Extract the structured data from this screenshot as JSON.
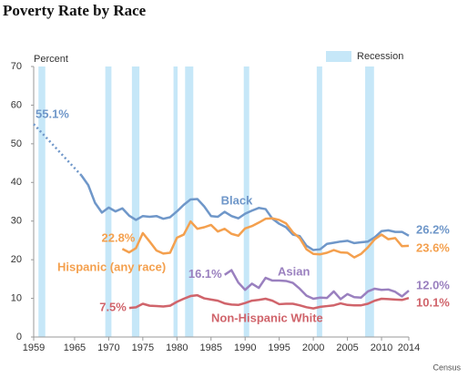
{
  "chart_data": {
    "type": "line",
    "title": "Poverty Rate by Race",
    "y_label": "Percent",
    "source": "Census",
    "recession_label": "Recession",
    "recession_color": "#c6e7f8",
    "recessions": [
      [
        1959.7,
        1960.7
      ],
      [
        1969.5,
        1970.4
      ],
      [
        1973.4,
        1974.5
      ],
      [
        1979.5,
        1980.1
      ],
      [
        1981.2,
        1982.4
      ],
      [
        1989.8,
        1990.6
      ],
      [
        2000.5,
        2001.3
      ],
      [
        2007.6,
        2008.9
      ]
    ],
    "xlim": [
      1959,
      2014
    ],
    "xticks": [
      1959,
      1965,
      1970,
      1975,
      1980,
      1985,
      1990,
      1995,
      2000,
      2005,
      2010,
      2014
    ],
    "ylim": [
      0,
      70
    ],
    "yticks": [
      0,
      10,
      20,
      30,
      40,
      50,
      60,
      70
    ],
    "grid": false,
    "series": [
      {
        "name": "Black",
        "color": "#6f97c9",
        "dotted_to": 1966,
        "x": [
          1959,
          1966,
          1967,
          1968,
          1969,
          1970,
          1971,
          1972,
          1973,
          1974,
          1975,
          1976,
          1977,
          1978,
          1979,
          1980,
          1981,
          1982,
          1983,
          1984,
          1985,
          1986,
          1987,
          1988,
          1989,
          1990,
          1991,
          1992,
          1993,
          1994,
          1995,
          1996,
          1997,
          1998,
          1999,
          2000,
          2001,
          2002,
          2003,
          2004,
          2005,
          2006,
          2007,
          2008,
          2009,
          2010,
          2011,
          2012,
          2013,
          2014
        ],
        "values": [
          55.1,
          41.8,
          39.3,
          34.7,
          32.2,
          33.5,
          32.5,
          33.3,
          31.4,
          30.3,
          31.3,
          31.1,
          31.3,
          30.6,
          31.0,
          32.5,
          34.2,
          35.6,
          35.7,
          33.8,
          31.3,
          31.1,
          32.4,
          31.3,
          30.7,
          31.9,
          32.7,
          33.4,
          33.1,
          30.6,
          29.3,
          28.4,
          26.5,
          26.1,
          23.6,
          22.5,
          22.7,
          24.1,
          24.4,
          24.7,
          24.9,
          24.3,
          24.5,
          24.7,
          25.8,
          27.4,
          27.6,
          27.2,
          27.2,
          26.2
        ],
        "value_labels": [
          "55.1%",
          null,
          null,
          null,
          null,
          null,
          null,
          null,
          null,
          null,
          null,
          null,
          null,
          null,
          null,
          null,
          null,
          null,
          null,
          null,
          null,
          null,
          null,
          null,
          null,
          null,
          null,
          null,
          null,
          null,
          null,
          null,
          null,
          null,
          null,
          null,
          null,
          null,
          null,
          null,
          null,
          null,
          null,
          null,
          null,
          null,
          null,
          null,
          null,
          "26.2%"
        ]
      },
      {
        "name": "Hispanic (any race)",
        "color": "#f4a04e",
        "x": [
          1972,
          1973,
          1974,
          1975,
          1976,
          1977,
          1978,
          1979,
          1980,
          1981,
          1982,
          1983,
          1984,
          1985,
          1986,
          1987,
          1988,
          1989,
          1990,
          1991,
          1992,
          1993,
          1994,
          1995,
          1996,
          1997,
          1998,
          1999,
          2000,
          2001,
          2002,
          2003,
          2004,
          2005,
          2006,
          2007,
          2008,
          2009,
          2010,
          2011,
          2012,
          2013,
          2014
        ],
        "values": [
          22.8,
          21.9,
          23.0,
          26.9,
          24.7,
          22.4,
          21.6,
          21.8,
          25.7,
          26.5,
          29.9,
          28.0,
          28.4,
          29.0,
          27.3,
          28.0,
          26.7,
          26.2,
          28.1,
          28.7,
          29.6,
          30.6,
          30.7,
          30.3,
          29.4,
          27.1,
          25.6,
          22.7,
          21.5,
          21.4,
          21.8,
          22.5,
          21.9,
          21.8,
          20.6,
          21.5,
          23.2,
          25.3,
          26.5,
          25.3,
          25.6,
          23.5,
          23.6
        ],
        "value_labels": [
          "22.8%",
          null,
          null,
          null,
          null,
          null,
          null,
          null,
          null,
          null,
          null,
          null,
          null,
          null,
          null,
          null,
          null,
          null,
          null,
          null,
          null,
          null,
          null,
          null,
          null,
          null,
          null,
          null,
          null,
          null,
          null,
          null,
          null,
          null,
          null,
          null,
          null,
          null,
          null,
          null,
          null,
          null,
          "23.6%"
        ]
      },
      {
        "name": "Asian",
        "color": "#9a80bf",
        "x": [
          1987,
          1988,
          1989,
          1990,
          1991,
          1992,
          1993,
          1994,
          1995,
          1996,
          1997,
          1998,
          1999,
          2000,
          2001,
          2002,
          2003,
          2004,
          2005,
          2006,
          2007,
          2008,
          2009,
          2010,
          2011,
          2012,
          2013,
          2014
        ],
        "values": [
          16.1,
          17.3,
          14.1,
          12.2,
          13.8,
          12.7,
          15.3,
          14.6,
          14.6,
          14.5,
          14.0,
          12.5,
          10.7,
          9.9,
          10.2,
          10.1,
          11.8,
          9.8,
          11.1,
          10.3,
          10.2,
          11.8,
          12.5,
          12.2,
          12.3,
          11.7,
          10.5,
          12.0
        ],
        "value_labels": [
          "16.1%",
          null,
          null,
          null,
          null,
          null,
          null,
          null,
          null,
          null,
          null,
          null,
          null,
          null,
          null,
          null,
          null,
          null,
          null,
          null,
          null,
          null,
          null,
          null,
          null,
          null,
          null,
          "12.0%"
        ]
      },
      {
        "name": "Non-Hispanic White",
        "color": "#d0646b",
        "x": [
          1973,
          1974,
          1975,
          1976,
          1977,
          1978,
          1979,
          1980,
          1981,
          1982,
          1983,
          1984,
          1985,
          1986,
          1987,
          1988,
          1989,
          1990,
          1991,
          1992,
          1993,
          1994,
          1995,
          1996,
          1997,
          1998,
          1999,
          2000,
          2001,
          2002,
          2003,
          2004,
          2005,
          2006,
          2007,
          2008,
          2009,
          2010,
          2011,
          2012,
          2013,
          2014
        ],
        "values": [
          7.5,
          7.7,
          8.6,
          8.1,
          8.0,
          7.9,
          8.1,
          9.1,
          9.9,
          10.6,
          10.8,
          10.0,
          9.7,
          9.4,
          8.7,
          8.4,
          8.3,
          8.8,
          9.4,
          9.6,
          9.9,
          9.4,
          8.5,
          8.6,
          8.6,
          8.2,
          7.7,
          7.4,
          7.8,
          8.0,
          8.2,
          8.7,
          8.3,
          8.2,
          8.2,
          8.6,
          9.4,
          9.9,
          9.8,
          9.7,
          9.6,
          10.1
        ],
        "value_labels": [
          "7.5%",
          null,
          null,
          null,
          null,
          null,
          null,
          null,
          null,
          null,
          null,
          null,
          null,
          null,
          null,
          null,
          null,
          null,
          null,
          null,
          null,
          null,
          null,
          null,
          null,
          null,
          null,
          null,
          null,
          null,
          null,
          null,
          null,
          null,
          null,
          null,
          null,
          null,
          null,
          null,
          null,
          "10.1%"
        ]
      }
    ]
  }
}
